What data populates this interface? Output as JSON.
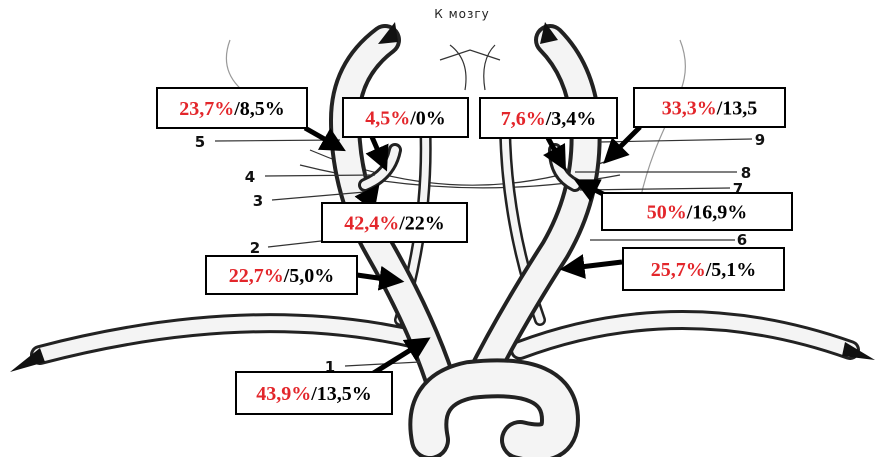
{
  "title": "К мозгу",
  "numbers": [
    "1",
    "2",
    "3",
    "4",
    "5",
    "6",
    "7",
    "8",
    "9"
  ],
  "labels": [
    {
      "red": "23,7%",
      "black": "/8,5%"
    },
    {
      "red": "4,5%",
      "black": "/0%"
    },
    {
      "red": "7,6%",
      "black": "/3,4%"
    },
    {
      "red": "33,3%",
      "black": "/13,5"
    },
    {
      "red": "50%",
      "black": "/16,9%"
    },
    {
      "red": "42,4%",
      "black": "/22%"
    },
    {
      "red": "22,7%",
      "black": "/5,0%"
    },
    {
      "red": "25,7%",
      "black": "/5,1%"
    },
    {
      "red": "43,9%",
      "black": "/13,5%"
    }
  ]
}
